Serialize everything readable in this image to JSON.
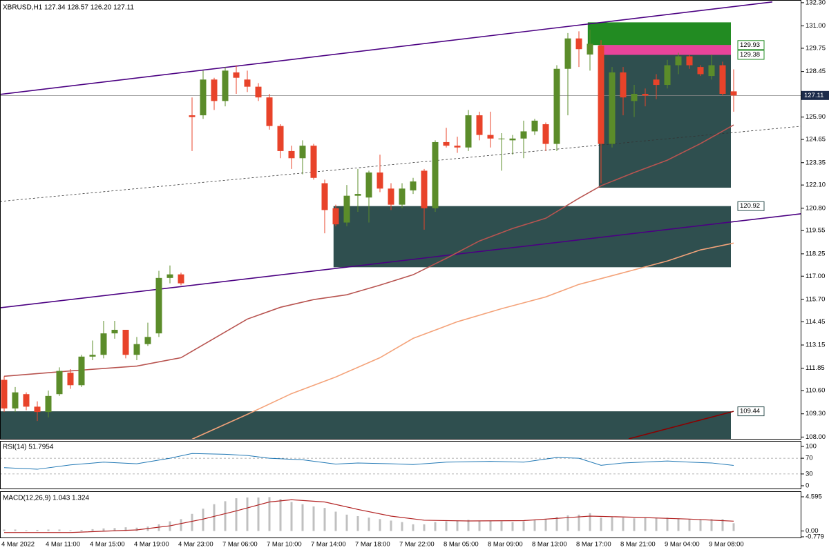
{
  "chart_data": [
    {
      "type": "candlestick",
      "title": "XBRUSD,H1  127.34 128.57 126.20 127.11",
      "categories": [
        "4 Mar 2022",
        null,
        null,
        null,
        "4 Mar 11:00",
        null,
        null,
        null,
        "4 Mar 15:00",
        null,
        null,
        null,
        "4 Mar 19:00",
        null,
        null,
        null,
        "4 Mar 23:00",
        null,
        null,
        null,
        "7 Mar 06:00",
        null,
        null,
        null,
        "7 Mar 10:00",
        null,
        null,
        null,
        "7 Mar 14:00",
        null,
        null,
        null,
        "7 Mar 18:00",
        null,
        null,
        null,
        "7 Mar 22:00",
        null,
        null,
        null,
        "8 Mar 05:00",
        null,
        null,
        null,
        "8 Mar 09:00",
        null,
        null,
        null,
        "8 Mar 13:00",
        null,
        null,
        null,
        "8 Mar 17:00",
        null,
        null,
        null,
        "8 Mar 21:00",
        null,
        null,
        null,
        "9 Mar 04:00",
        null,
        null,
        null,
        "9 Mar 08:00",
        null,
        null
      ],
      "open": [
        111.2,
        109.6,
        110.4,
        109.7,
        109.4,
        110.4,
        111.6,
        110.9,
        112.5,
        112.6,
        113.8,
        114.0,
        112.6,
        113.2,
        113.8,
        116.9,
        117.1,
        126.0,
        126.0,
        128.0,
        126.8,
        128.4,
        128.0,
        127.6,
        127.0,
        125.4,
        124.0,
        123.6,
        124.3,
        122.2,
        120.8,
        120.0,
        121.5,
        121.4,
        122.8,
        121.9,
        121.0,
        121.8,
        122.9,
        120.8,
        124.5,
        124.3,
        124.2,
        126.0,
        124.9,
        124.7,
        124.6,
        124.7,
        125.1,
        125.5,
        124.4,
        128.6,
        130.3,
        129.4,
        129.9,
        124.4,
        128.4,
        126.8,
        127.2,
        128.0,
        127.7,
        128.8,
        129.3,
        128.7,
        128.2,
        128.8,
        127.34
      ],
      "high": [
        111.4,
        110.8,
        110.5,
        110.0,
        110.6,
        111.9,
        111.8,
        112.6,
        113.4,
        114.5,
        114.5,
        114.0,
        113.6,
        114.4,
        117.3,
        117.6,
        117.2,
        127.0,
        128.5,
        128.1,
        128.7,
        128.8,
        128.5,
        127.8,
        127.2,
        125.5,
        124.3,
        124.6,
        124.4,
        122.4,
        121.0,
        122.1,
        123.0,
        122.9,
        123.8,
        122.2,
        122.2,
        122.5,
        123.0,
        124.6,
        125.3,
        124.8,
        126.3,
        126.2,
        126.2,
        125.0,
        124.9,
        125.7,
        125.8,
        125.6,
        128.8,
        130.6,
        130.7,
        130.8,
        130.2,
        128.7,
        128.7,
        127.7,
        127.5,
        128.3,
        129.1,
        129.5,
        129.4,
        128.8,
        129.4,
        129.0,
        128.57
      ],
      "low": [
        109.4,
        109.4,
        109.5,
        108.9,
        109.1,
        110.3,
        110.7,
        110.8,
        112.3,
        112.4,
        113.5,
        112.4,
        112.3,
        113.1,
        113.6,
        116.6,
        116.5,
        124.0,
        125.8,
        126.3,
        126.5,
        127.2,
        127.3,
        126.8,
        125.2,
        123.6,
        123.0,
        122.7,
        122.4,
        119.4,
        119.8,
        119.8,
        120.6,
        120.0,
        121.7,
        120.7,
        120.8,
        121.6,
        119.6,
        120.6,
        124.2,
        123.9,
        124.0,
        124.6,
        124.2,
        122.9,
        123.8,
        123.6,
        124.9,
        124.0,
        124.0,
        126.0,
        128.7,
        128.5,
        122.2,
        124.2,
        126.0,
        125.9,
        126.5,
        126.9,
        127.5,
        128.3,
        128.6,
        128.2,
        128.0,
        127.1,
        126.2
      ],
      "close": [
        109.6,
        110.5,
        109.7,
        109.4,
        110.3,
        111.7,
        110.9,
        112.5,
        112.6,
        113.8,
        114.0,
        112.6,
        113.2,
        113.6,
        116.9,
        117.1,
        116.6,
        125.9,
        128.0,
        126.8,
        128.5,
        128.1,
        127.6,
        127.0,
        125.4,
        124.0,
        123.6,
        124.3,
        122.5,
        120.7,
        119.9,
        121.5,
        121.6,
        122.8,
        121.9,
        121.0,
        121.9,
        122.3,
        120.8,
        124.5,
        124.3,
        124.2,
        126.0,
        124.9,
        124.7,
        124.7,
        124.7,
        125.1,
        125.7,
        124.4,
        128.6,
        130.3,
        129.7,
        130.0,
        124.4,
        128.4,
        127.0,
        127.2,
        127.1,
        127.7,
        128.8,
        129.3,
        128.8,
        128.3,
        128.8,
        127.2,
        127.11
      ],
      "up_color": "#5b8c2a",
      "down_color": "#e8432a",
      "ylim": [
        107.9,
        132.45
      ],
      "yticks": [
        {
          "value": 132.3,
          "label": "132.30"
        },
        {
          "value": 131,
          "label": "131.00"
        },
        {
          "value": 129.75,
          "label": "129.75"
        },
        {
          "value": 128.45,
          "label": "128.45"
        },
        {
          "value": 125.9,
          "label": "125.90"
        },
        {
          "value": 124.65,
          "label": "124.65"
        },
        {
          "value": 123.35,
          "label": "123.35"
        },
        {
          "value": 122.1,
          "label": "122.10"
        },
        {
          "value": 120.8,
          "label": "120.80"
        },
        {
          "value": 119.55,
          "label": "119.55"
        },
        {
          "value": 118.25,
          "label": "118.25"
        },
        {
          "value": 117,
          "label": "117.00"
        },
        {
          "value": 115.7,
          "label": "115.70"
        },
        {
          "value": 114.45,
          "label": "114.45"
        },
        {
          "value": 113.15,
          "label": "113.15"
        },
        {
          "value": 111.85,
          "label": "111.85"
        },
        {
          "value": 110.6,
          "label": "110.60"
        },
        {
          "value": 109.3,
          "label": "109.30"
        },
        {
          "value": 108,
          "label": "108.00"
        }
      ],
      "zones": [
        {
          "x": [
            -0.4,
            65.75
          ],
          "y": [
            107.9,
            109.44
          ],
          "color": "#2f4f4f"
        },
        {
          "x": [
            29.8,
            65.75
          ],
          "y": [
            117.5,
            120.92
          ],
          "color": "#2f4f4f"
        },
        {
          "x": [
            53.8,
            65.75
          ],
          "y": [
            121.95,
            129.93
          ],
          "color": "#2f4f4f"
        },
        {
          "x": [
            52.8,
            65.75
          ],
          "y": [
            129.93,
            131.2
          ],
          "color": "#228b22"
        },
        {
          "x": [
            53.8,
            65.75
          ],
          "y": [
            129.38,
            129.93
          ],
          "color": "#e8449a"
        }
      ],
      "lines": [
        {
          "x": [
            -0.375,
            69.5
          ],
          "values": [
            127.17,
            132.34
          ],
          "color": "#4b0082",
          "width": 1.6
        },
        {
          "x": [
            -0.375,
            72.1
          ],
          "values": [
            115.23,
            120.49
          ],
          "color": "#4b0082",
          "width": 1.6
        },
        {
          "x": [
            -0.375,
            72.1
          ],
          "values": [
            121.18,
            125.39
          ],
          "color": "#333333",
          "width": 0.8,
          "dash": true
        },
        {
          "x": [
            0,
            6,
            12,
            16,
            19,
            22,
            25,
            28,
            31,
            34,
            37,
            40,
            43,
            46,
            49,
            52,
            54,
            57,
            60,
            63,
            66
          ],
          "values": [
            111.4,
            111.7,
            111.97,
            112.44,
            113.52,
            114.6,
            115.26,
            115.69,
            115.96,
            116.5,
            117.08,
            118.0,
            118.97,
            119.67,
            120.24,
            121.36,
            122.06,
            122.8,
            123.49,
            124.42,
            125.46
          ],
          "color": "#b85450",
          "width": 1.6
        },
        {
          "x": [
            17,
            22,
            26,
            30,
            34,
            37,
            41,
            45,
            49,
            52,
            56,
            60,
            63,
            66
          ],
          "values": [
            107.88,
            109.27,
            110.43,
            111.36,
            112.44,
            113.52,
            114.45,
            115.18,
            115.84,
            116.54,
            117.19,
            117.85,
            118.47,
            118.85
          ],
          "color": "#f4a37a",
          "width": 1.6
        },
        {
          "x": [
            56.5,
            66
          ],
          "values": [
            107.9,
            109.44
          ],
          "color": "#8b0000",
          "width": 1.6
        }
      ],
      "current": 127.11,
      "price_tags": [
        {
          "value": 129.93,
          "label": "129.93",
          "color": "#228b22"
        },
        {
          "value": 129.38,
          "label": "129.38",
          "color": "#228b22"
        },
        {
          "value": 120.92,
          "label": "120.92",
          "color": "#2f4f4f"
        },
        {
          "value": 109.44,
          "label": "109.44",
          "color": "#2f4f4f"
        }
      ],
      "current_label": "127.11"
    },
    {
      "type": "line",
      "title": "RSI(14) 51.7954",
      "ylim": [
        0,
        100
      ],
      "yticks": [
        100,
        70,
        30,
        0
      ],
      "levels": [
        70,
        30
      ],
      "series": [
        {
          "color": "#1f77b4",
          "x": [
            0,
            3,
            6,
            9,
            12,
            15,
            17,
            20,
            22,
            24,
            27,
            30,
            32,
            35,
            37,
            40,
            44,
            47,
            50,
            52,
            54,
            56,
            60,
            62,
            64,
            66
          ],
          "values": [
            46,
            42,
            53,
            60,
            56,
            70,
            82,
            80,
            77,
            70,
            66,
            55,
            58,
            56,
            54,
            60,
            62,
            60,
            72,
            70,
            52,
            58,
            63,
            60,
            58,
            51.7954
          ]
        }
      ]
    },
    {
      "type": "histogram-line",
      "title": "MACD(12,26,9) 1.043 1.324",
      "ylim": [
        -0.779,
        4.595
      ],
      "yticks": [
        4.595,
        {
          "value": 0,
          "label": "0.00"
        },
        -0.779
      ],
      "bars": {
        "color": "#c0c0c0",
        "values": [
          0.2,
          0.2,
          0.1,
          0.15,
          0.2,
          0.2,
          0.1,
          0.15,
          0.25,
          0.35,
          0.4,
          0.5,
          0.45,
          0.6,
          0.9,
          1.3,
          1.6,
          2.3,
          3.0,
          3.6,
          4.0,
          4.4,
          4.5,
          4.5,
          4.55,
          4.3,
          3.9,
          3.6,
          3.3,
          3.1,
          2.6,
          2.2,
          2.0,
          1.8,
          1.6,
          1.4,
          1.2,
          0.9,
          0.9,
          1.2,
          1.3,
          1.4,
          1.5,
          1.3,
          1.4,
          1.3,
          1.2,
          1.3,
          1.5,
          1.6,
          1.9,
          2.1,
          2.2,
          2.4,
          1.8,
          1.9,
          1.8,
          1.7,
          1.8,
          1.8,
          1.8,
          1.7,
          1.6,
          1.6,
          1.6,
          1.6,
          1.043
        ]
      },
      "signal": {
        "color": "#b22222",
        "x": [
          0,
          6,
          12,
          15,
          18,
          21,
          24,
          26,
          29,
          32,
          35,
          38,
          42,
          47,
          51,
          53,
          57,
          62,
          66
        ],
        "values": [
          -0.2,
          -0.2,
          0.15,
          0.7,
          1.6,
          2.7,
          3.9,
          4.2,
          3.9,
          2.9,
          2.0,
          1.45,
          1.35,
          1.4,
          1.8,
          2.0,
          1.85,
          1.6,
          1.324
        ]
      }
    }
  ]
}
